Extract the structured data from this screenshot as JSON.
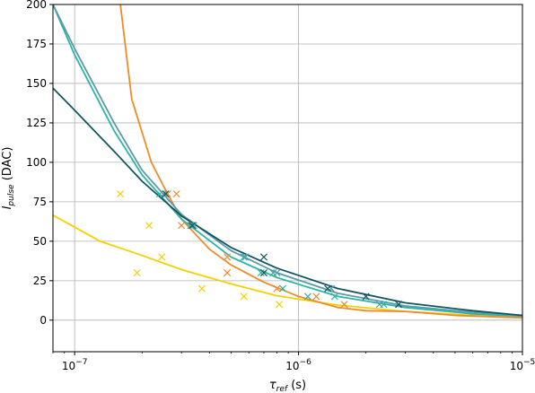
{
  "chart_data": {
    "type": "scatter",
    "title": "",
    "xlabel": {
      "main": "τ",
      "sub": "ref",
      "unit": " (s)"
    },
    "ylabel": {
      "main": "I",
      "sub": "pulse",
      "unit": " (DAC)"
    },
    "xscale": "log",
    "xlim": [
      8e-08,
      1e-05
    ],
    "ylim": [
      -20,
      200
    ],
    "grid": true,
    "x_tick_labels": [
      {
        "value": 1e-07,
        "base": "10",
        "exp": "−7"
      },
      {
        "value": 1e-06,
        "base": "10",
        "exp": "−6"
      },
      {
        "value": 1e-05,
        "base": "10",
        "exp": "−5"
      }
    ],
    "y_ticks": [
      0,
      25,
      50,
      75,
      100,
      125,
      150,
      175,
      200
    ],
    "series": [
      {
        "color": "#f5d000",
        "points": [
          [
            1.6e-07,
            80
          ],
          [
            2.15e-07,
            60
          ],
          [
            1.9e-07,
            30
          ],
          [
            2.45e-07,
            40
          ],
          [
            3.7e-07,
            20
          ],
          [
            5.7e-07,
            15
          ],
          [
            8.2e-07,
            10
          ]
        ],
        "fit": [
          [
            8e-08,
            66.5
          ],
          [
            1.3e-07,
            50
          ],
          [
            2e-07,
            41
          ],
          [
            3e-07,
            32
          ],
          [
            5e-07,
            23
          ],
          [
            8e-07,
            15.5
          ],
          [
            1.5e-06,
            9.5
          ],
          [
            3e-06,
            5.5
          ],
          [
            6e-06,
            3
          ],
          [
            1e-05,
            1.5
          ]
        ]
      },
      {
        "color": "#ef8a2b",
        "points": [
          [
            2.6e-07,
            80
          ],
          [
            2.85e-07,
            80
          ],
          [
            3e-07,
            60
          ],
          [
            3.3e-07,
            60
          ],
          [
            4.8e-07,
            40
          ],
          [
            4.8e-07,
            30
          ],
          [
            8e-07,
            20
          ],
          [
            1.2e-06,
            15
          ],
          [
            1.6e-06,
            10
          ]
        ],
        "fit": [
          [
            1.6e-07,
            200
          ],
          [
            1.8e-07,
            140
          ],
          [
            2.2e-07,
            100
          ],
          [
            2.6e-07,
            80
          ],
          [
            3e-07,
            64
          ],
          [
            4e-07,
            45
          ],
          [
            5e-07,
            35
          ],
          [
            7e-07,
            24
          ],
          [
            1e-06,
            15
          ],
          [
            1.5e-06,
            8
          ],
          [
            2e-06,
            6
          ],
          [
            3e-06,
            5.5
          ],
          [
            5e-06,
            3
          ],
          [
            1e-05,
            1.5
          ]
        ]
      },
      {
        "color": "#2ab5a5",
        "points": [
          [
            2.4e-07,
            80
          ],
          [
            3.3e-07,
            60
          ],
          [
            5.7e-07,
            40
          ],
          [
            6.8e-07,
            30
          ],
          [
            7.7e-07,
            30
          ],
          [
            8.5e-07,
            20
          ],
          [
            1.1e-06,
            15
          ],
          [
            1.45e-06,
            15
          ],
          [
            2.4e-06,
            10
          ]
        ],
        "fit": [
          [
            8e-08,
            200
          ],
          [
            1e-07,
            168
          ],
          [
            1.5e-07,
            120
          ],
          [
            2e-07,
            92
          ],
          [
            3e-07,
            64
          ],
          [
            5e-07,
            40
          ],
          [
            8e-07,
            27
          ],
          [
            1.5e-06,
            15
          ],
          [
            3e-06,
            8
          ],
          [
            6e-06,
            4
          ],
          [
            1e-05,
            2.5
          ]
        ]
      },
      {
        "color": "#5b9aa8",
        "points": [
          [
            2.5e-07,
            80
          ],
          [
            3.4e-07,
            60
          ],
          [
            5.8e-07,
            40
          ],
          [
            8e-07,
            30
          ],
          [
            1.4e-06,
            20
          ],
          [
            2.3e-06,
            10
          ],
          [
            2.8e-06,
            10
          ]
        ],
        "fit": [
          [
            8e-08,
            200
          ],
          [
            1e-07,
            172
          ],
          [
            1.5e-07,
            125
          ],
          [
            2e-07,
            95
          ],
          [
            3e-07,
            67
          ],
          [
            5e-07,
            44
          ],
          [
            8e-07,
            30
          ],
          [
            1.5e-06,
            17
          ],
          [
            3e-06,
            9
          ],
          [
            6e-06,
            5
          ],
          [
            1e-05,
            3
          ]
        ]
      },
      {
        "color": "#12555f",
        "points": [
          [
            2.55e-07,
            80
          ],
          [
            3.35e-07,
            60
          ],
          [
            7e-07,
            40
          ],
          [
            7e-07,
            30
          ],
          [
            1.35e-06,
            20
          ],
          [
            2e-06,
            15
          ],
          [
            2.8e-06,
            10
          ]
        ],
        "fit": [
          [
            8e-08,
            147
          ],
          [
            1e-07,
            133
          ],
          [
            1.5e-07,
            107
          ],
          [
            2e-07,
            88
          ],
          [
            3e-07,
            66
          ],
          [
            5e-07,
            46
          ],
          [
            8e-07,
            33
          ],
          [
            1.5e-06,
            20
          ],
          [
            3e-06,
            11
          ],
          [
            6e-06,
            6
          ],
          [
            1e-05,
            3
          ]
        ]
      }
    ]
  }
}
